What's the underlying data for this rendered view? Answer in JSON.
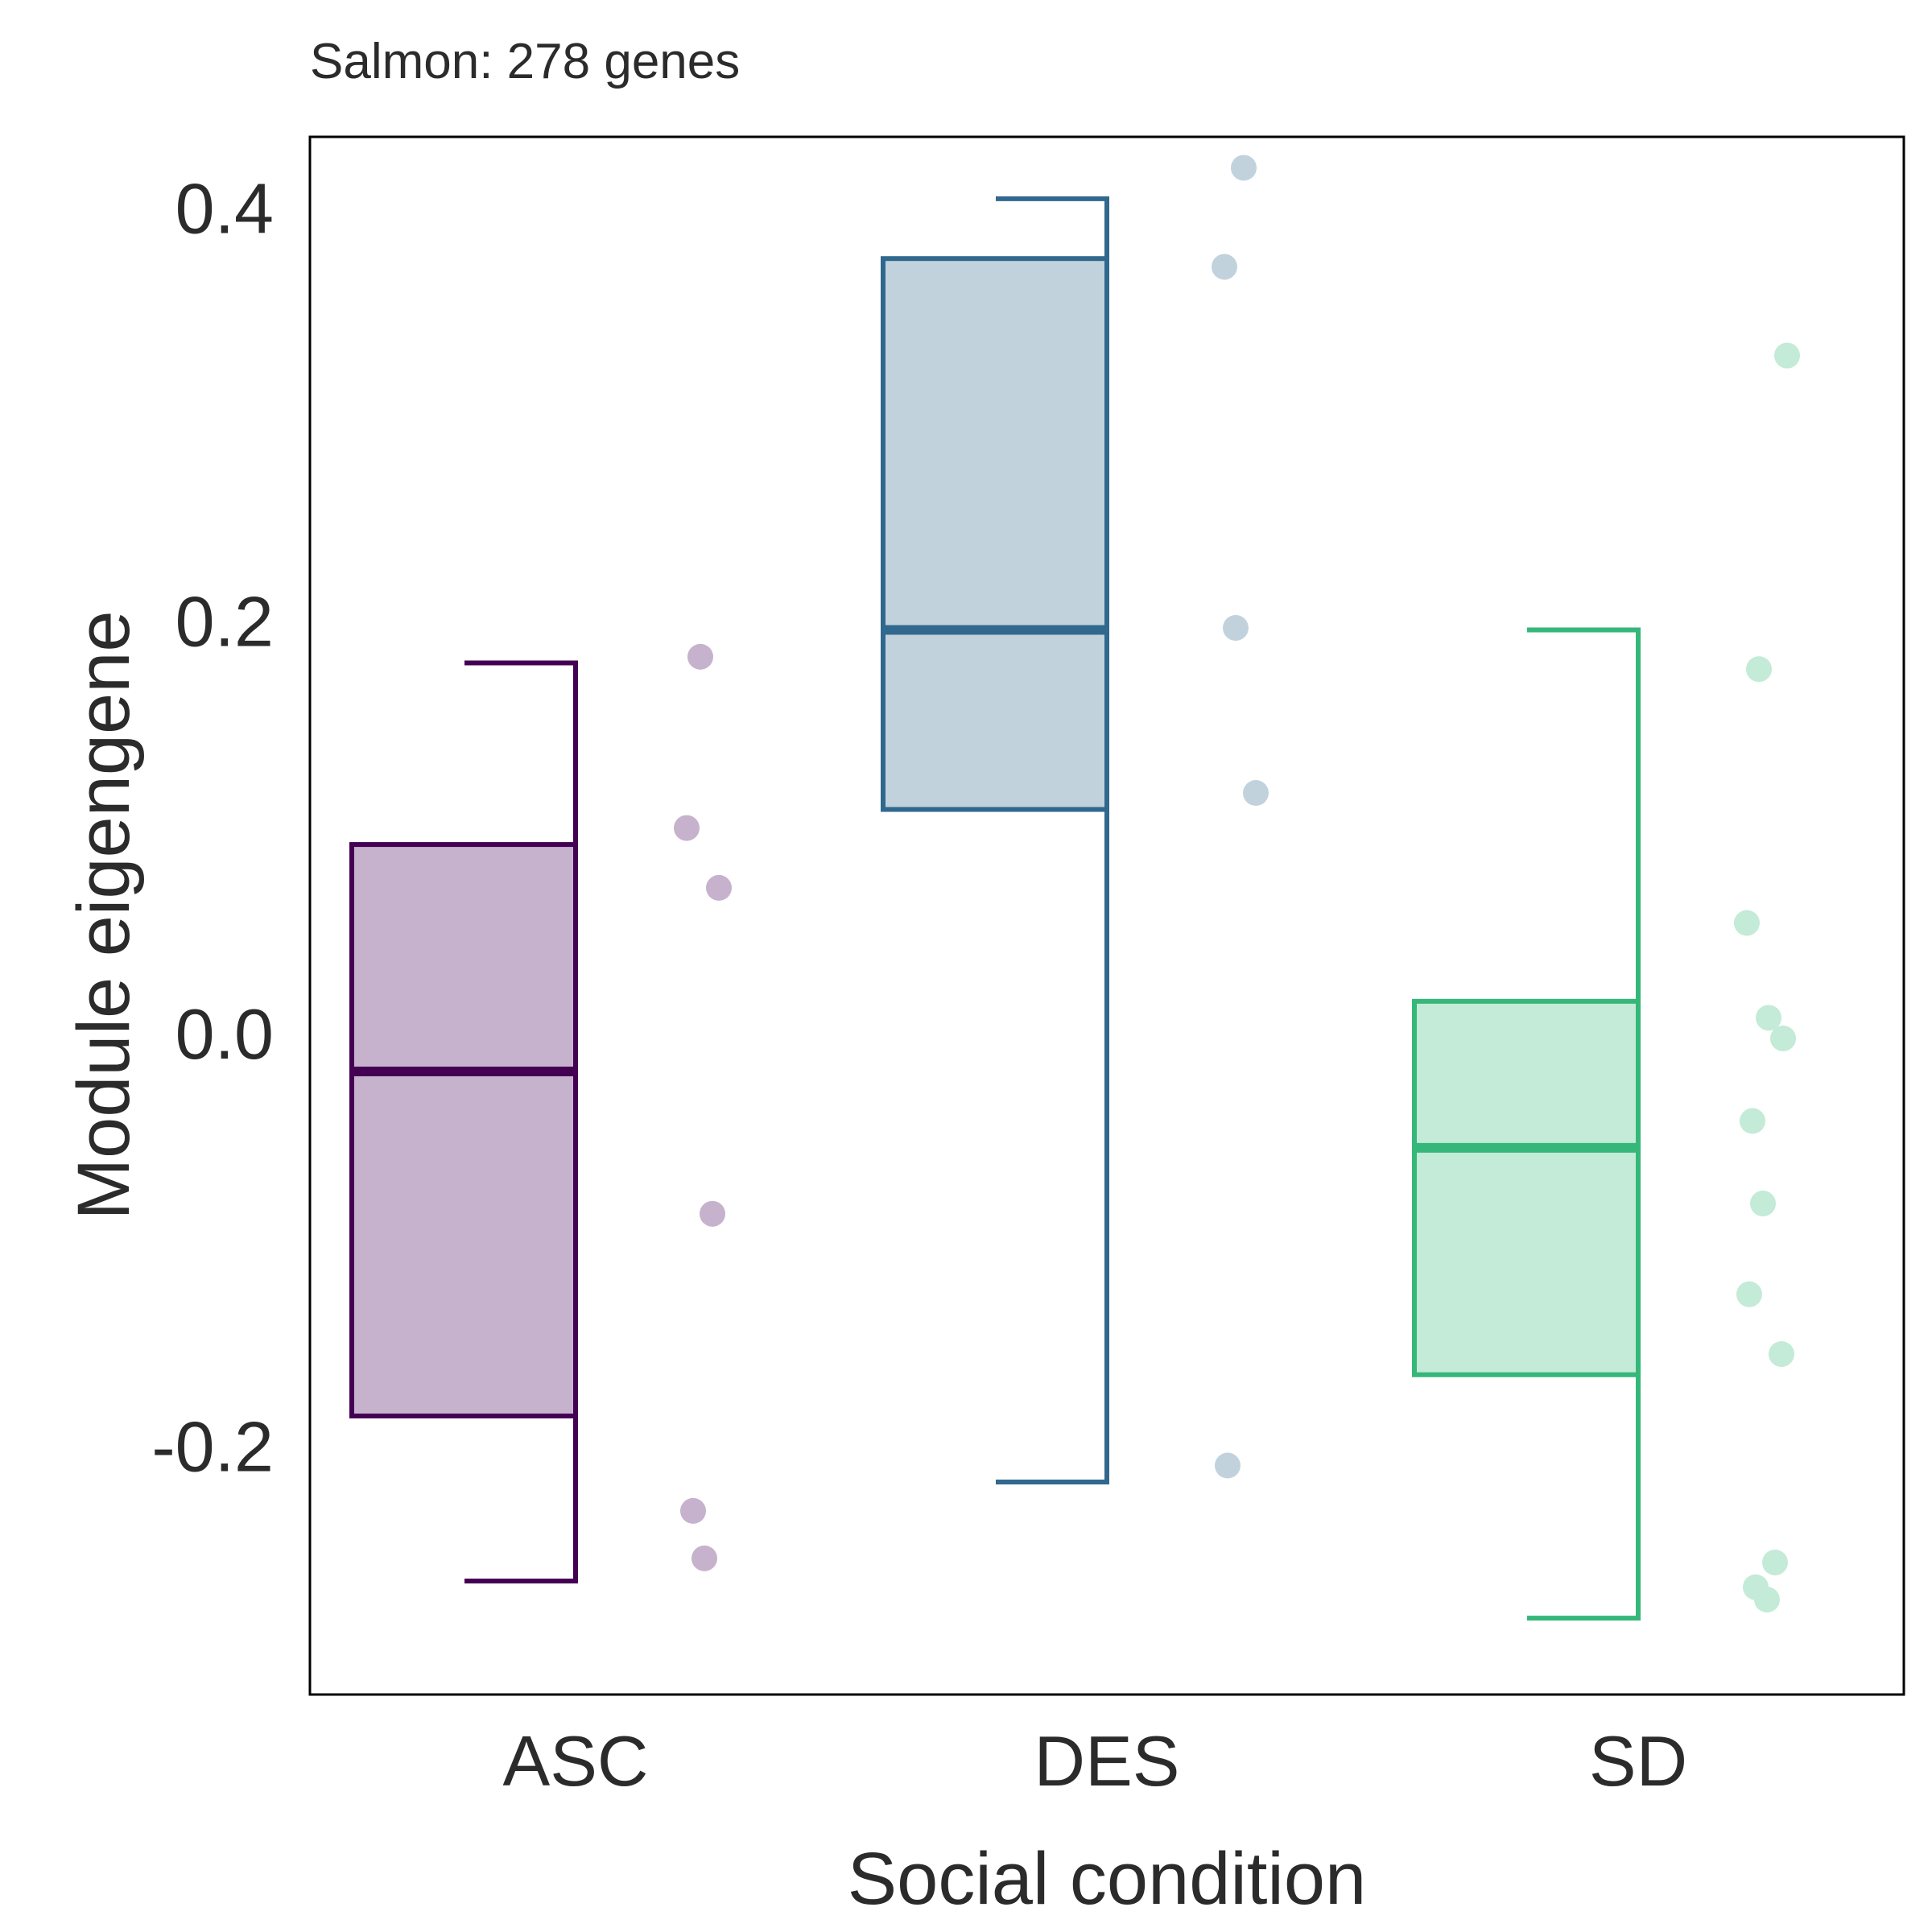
{
  "chart_data": {
    "type": "boxplot",
    "title": "Salmon: 278 genes",
    "xlabel": "Social condition",
    "ylabel": "Module eigengene",
    "ylim": [
      -0.32,
      0.435
    ],
    "yticks": [
      {
        "value": 0.4,
        "label": "0.4"
      },
      {
        "value": 0.2,
        "label": "0.2"
      },
      {
        "value": 0.0,
        "label": "0.0"
      },
      {
        "value": -0.2,
        "label": "-0.2"
      }
    ],
    "grid": false,
    "groups": [
      {
        "category": "ASC",
        "color": "#440154",
        "fill": "#c6b2cc",
        "whisker_low": -0.265,
        "q1": -0.185,
        "median": -0.018,
        "q3": 0.092,
        "whisker_high": 0.18,
        "points": [
          0.183,
          0.1,
          0.071,
          -0.087,
          -0.231,
          -0.254
        ]
      },
      {
        "category": "DES",
        "color": "#31688e",
        "fill": "#c2d2dd",
        "whisker_low": -0.217,
        "q1": 0.109,
        "median": 0.196,
        "q3": 0.376,
        "whisker_high": 0.405,
        "points": [
          0.42,
          0.372,
          0.197,
          0.117,
          -0.209
        ]
      },
      {
        "category": "SD",
        "color": "#35b779",
        "fill": "#c3eBd7",
        "whisker_low": -0.283,
        "q1": -0.165,
        "median": -0.055,
        "q3": 0.016,
        "whisker_high": 0.196,
        "points": [
          0.329,
          0.177,
          0.054,
          0.008,
          -0.002,
          -0.042,
          -0.082,
          -0.126,
          -0.155,
          -0.256,
          -0.268,
          -0.274
        ]
      }
    ]
  }
}
